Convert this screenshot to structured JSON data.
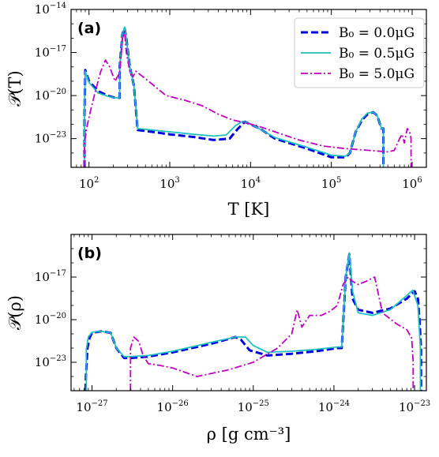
{
  "chart_data": [
    {
      "type": "line",
      "panel_label": "(a)",
      "xlabel": "T [K]",
      "ylabel": "𝒫(T)",
      "xscale": "log",
      "yscale": "log",
      "xlim": [
        60,
        1500000
      ],
      "ylim": [
        1e-25,
        1e-14
      ],
      "xticks": [
        100,
        1000,
        10000,
        100000,
        1000000
      ],
      "xtick_labels": [
        {
          "base": "10",
          "exp": "2"
        },
        {
          "base": "10",
          "exp": "3"
        },
        {
          "base": "10",
          "exp": "4"
        },
        {
          "base": "10",
          "exp": "5"
        },
        {
          "base": "10",
          "exp": "6"
        }
      ],
      "yticks": [
        1e-23,
        1e-20,
        1e-17,
        1e-14
      ],
      "ytick_labels": [
        {
          "base": "10",
          "exp": "−23"
        },
        {
          "base": "10",
          "exp": "−20"
        },
        {
          "base": "10",
          "exp": "−17"
        },
        {
          "base": "10",
          "exp": "−14"
        }
      ],
      "legend": {
        "placement": "top-right"
      },
      "series": [
        {
          "name": "B₀ = 0.0μG",
          "color": "#0000dd",
          "style": "dashed",
          "x": [
            88,
            88,
            90,
            100,
            130,
            170,
            210,
            240,
            240,
            248,
            260,
            275,
            290,
            320,
            360,
            400,
            600,
            1000,
            2000,
            3500,
            5500,
            7000,
            8500,
            10000,
            13000,
            20000,
            50000,
            100000,
            150000,
            170000,
            200000,
            240000,
            280000,
            330000,
            370000,
            400000,
            420000,
            440000,
            440000
          ],
          "y": [
            1e-25,
            6e-22,
            6e-19,
            1e-19,
            2e-20,
            1e-20,
            7e-21,
            7e-21,
            1e-18,
            1e-17,
            2e-16,
            5e-16,
            1e-16,
            1e-18,
            5e-20,
            4e-23,
            3e-23,
            2e-23,
            1.3e-23,
            8e-24,
            1e-23,
            5e-23,
            1.5e-22,
            1e-22,
            5e-23,
            1e-23,
            2e-24,
            5e-25,
            5e-25,
            1e-24,
            3e-23,
            2e-22,
            5e-22,
            7e-22,
            4e-22,
            1e-22,
            5e-23,
            5e-23,
            1e-25
          ]
        },
        {
          "name": "B₀ = 0.5μG",
          "color": "#20c0c0",
          "style": "solid",
          "x": [
            88,
            88,
            90,
            100,
            130,
            170,
            210,
            240,
            240,
            248,
            260,
            275,
            290,
            320,
            360,
            400,
            600,
            1000,
            2000,
            3500,
            5000,
            6500,
            8000,
            9500,
            12000,
            20000,
            50000,
            100000,
            150000,
            170000,
            200000,
            240000,
            280000,
            330000,
            370000,
            400000,
            420000,
            440000,
            440000
          ],
          "y": [
            1e-25,
            1e-21,
            5e-19,
            8e-20,
            1.5e-20,
            9e-21,
            7e-21,
            7e-21,
            1e-18,
            1e-17,
            2e-16,
            6e-16,
            1e-16,
            1e-18,
            5e-20,
            5e-23,
            4e-23,
            3e-23,
            2e-23,
            1.5e-23,
            1.8e-23,
            8e-23,
            1.6e-22,
            1.2e-22,
            6e-23,
            1.2e-23,
            2.5e-24,
            7e-25,
            6e-25,
            1e-24,
            3e-23,
            2.5e-22,
            6e-22,
            7e-22,
            4e-22,
            1e-22,
            5e-23,
            5e-23,
            1e-25
          ]
        },
        {
          "name": "B₀ = 5.0μG",
          "color": "#c000c0",
          "style": "dashdot",
          "x": [
            88,
            88,
            95,
            105,
            120,
            140,
            160,
            180,
            210,
            240,
            260,
            275,
            290,
            320,
            350,
            380,
            400,
            500,
            900,
            1500,
            2500,
            4000,
            6000,
            9000,
            12000,
            20000,
            40000,
            80000,
            150000,
            300000,
            500000,
            600000,
            700000,
            750000,
            800000,
            870000,
            930000,
            970000,
            970000
          ],
          "y": [
            1e-25,
            5e-24,
            8e-23,
            1e-21,
            2e-20,
            5e-19,
            3e-18,
            1e-18,
            1e-19,
            4e-19,
            1e-16,
            3e-16,
            1e-17,
            5e-19,
            2e-19,
            5e-19,
            4e-19,
            1.5e-19,
            1e-20,
            5e-21,
            2e-21,
            5e-22,
            2e-22,
            1.2e-22,
            8e-23,
            3e-23,
            8e-24,
            3e-24,
            2e-24,
            1.5e-24,
            1.2e-24,
            1.5e-24,
            1e-23,
            2e-23,
            5e-24,
            5e-23,
            3e-23,
            1e-23,
            1e-25
          ]
        }
      ]
    },
    {
      "type": "line",
      "panel_label": "(b)",
      "xlabel": "ρ [g cm⁻³]",
      "ylabel": "𝒫(ρ)",
      "xscale": "log",
      "yscale": "log",
      "xlim": [
        5.5e-28,
        1.4e-23
      ],
      "ylim": [
        1e-25,
        1e-14
      ],
      "xticks": [
        1e-27,
        1e-26,
        1e-25,
        1e-24,
        1e-23
      ],
      "xtick_labels": [
        {
          "base": "10",
          "exp": "−27"
        },
        {
          "base": "10",
          "exp": "−26"
        },
        {
          "base": "10",
          "exp": "−25"
        },
        {
          "base": "10",
          "exp": "−24"
        },
        {
          "base": "10",
          "exp": "−23"
        }
      ],
      "yticks": [
        1e-23,
        1e-20,
        1e-17
      ],
      "ytick_labels": [
        {
          "base": "10",
          "exp": "−23"
        },
        {
          "base": "10",
          "exp": "−20"
        },
        {
          "base": "10",
          "exp": "−17"
        }
      ],
      "series": [
        {
          "name": "B₀ = 0.0μG",
          "color": "#0000dd",
          "style": "dashed",
          "x": [
            8.3e-28,
            8.4e-28,
            8.8e-28,
            9.3e-28,
            1e-27,
            1.3e-27,
            1.7e-27,
            2e-27,
            2.5e-27,
            3e-27,
            5e-27,
            1e-26,
            3e-26,
            6e-26,
            7e-26,
            9e-26,
            1.5e-25,
            3e-25,
            6e-25,
            1.1e-24,
            1.25e-24,
            1.4e-24,
            1.55e-24,
            1.7e-24,
            2e-24,
            3e-24,
            5e-24,
            8e-24,
            1e-23,
            1.1e-23,
            1.15e-23,
            1.2e-23,
            1.2e-23
          ],
          "y": [
            1e-25,
            1e-24,
            1e-22,
            5e-22,
            1.2e-21,
            1.5e-21,
            1.2e-21,
            1e-22,
            2e-23,
            2e-23,
            2.5e-23,
            5e-23,
            2e-22,
            6e-22,
            4e-22,
            7e-23,
            3e-23,
            4e-23,
            6e-23,
            1e-22,
            1e-22,
            1e-17,
            4e-16,
            3e-19,
            5e-20,
            3e-20,
            6e-20,
            3e-19,
            1e-18,
            3e-19,
            1e-20,
            1e-22,
            1e-25
          ]
        },
        {
          "name": "B₀ = 0.5μG",
          "color": "#20c0c0",
          "style": "solid",
          "x": [
            8.5e-28,
            8.5e-28,
            9e-28,
            1e-27,
            1.3e-27,
            1.7e-27,
            2e-27,
            2.5e-27,
            3e-27,
            5e-27,
            1e-26,
            3e-26,
            6e-26,
            8e-26,
            1e-25,
            1.5e-25,
            3e-25,
            6e-25,
            1.1e-24,
            1.25e-24,
            1.4e-24,
            1.55e-24,
            1.7e-24,
            2e-24,
            3e-24,
            5e-24,
            8e-24,
            9.5e-24,
            1.1e-23,
            1.18e-23,
            1.18e-23
          ],
          "y": [
            1e-25,
            8e-23,
            6e-22,
            1.3e-21,
            1.5e-21,
            1.2e-21,
            1e-22,
            2.5e-23,
            2.5e-23,
            3e-23,
            6e-23,
            2.5e-22,
            6e-22,
            6e-22,
            1.5e-22,
            5e-23,
            6e-23,
            8e-23,
            1.2e-22,
            1.2e-22,
            1e-17,
            5e-16,
            1e-18,
            3e-20,
            2e-20,
            5e-20,
            5e-19,
            1.2e-18,
            1e-19,
            1e-22,
            1e-25
          ]
        },
        {
          "name": "B₀ = 5.0μG",
          "color": "#c000c0",
          "style": "dashdot",
          "x": [
            3e-27,
            3e-27,
            3.3e-27,
            3.8e-27,
            4.3e-27,
            5e-27,
            7e-27,
            1e-26,
            2e-26,
            5e-26,
            1e-25,
            2e-25,
            3e-25,
            3.5e-25,
            4e-25,
            5e-25,
            7e-25,
            9e-25,
            1.1e-24,
            1.3e-24,
            1.5e-24,
            1.7e-24,
            2e-24,
            2.5e-24,
            3.2e-24,
            4e-24,
            6e-24,
            8e-24,
            9.2e-24,
            9.6e-24,
            9.6e-24
          ],
          "y": [
            1e-25,
            1e-22,
            6e-22,
            3e-22,
            3e-23,
            8e-24,
            6e-24,
            4e-24,
            1e-24,
            3e-24,
            1e-23,
            1e-22,
            1e-21,
            5e-20,
            3e-21,
            2e-20,
            2e-20,
            4e-20,
            1e-19,
            3e-18,
            1e-17,
            5e-18,
            3e-18,
            5e-18,
            1e-17,
            3e-20,
            5e-21,
            2e-21,
            5e-22,
            1e-23,
            1e-25
          ]
        }
      ]
    }
  ]
}
